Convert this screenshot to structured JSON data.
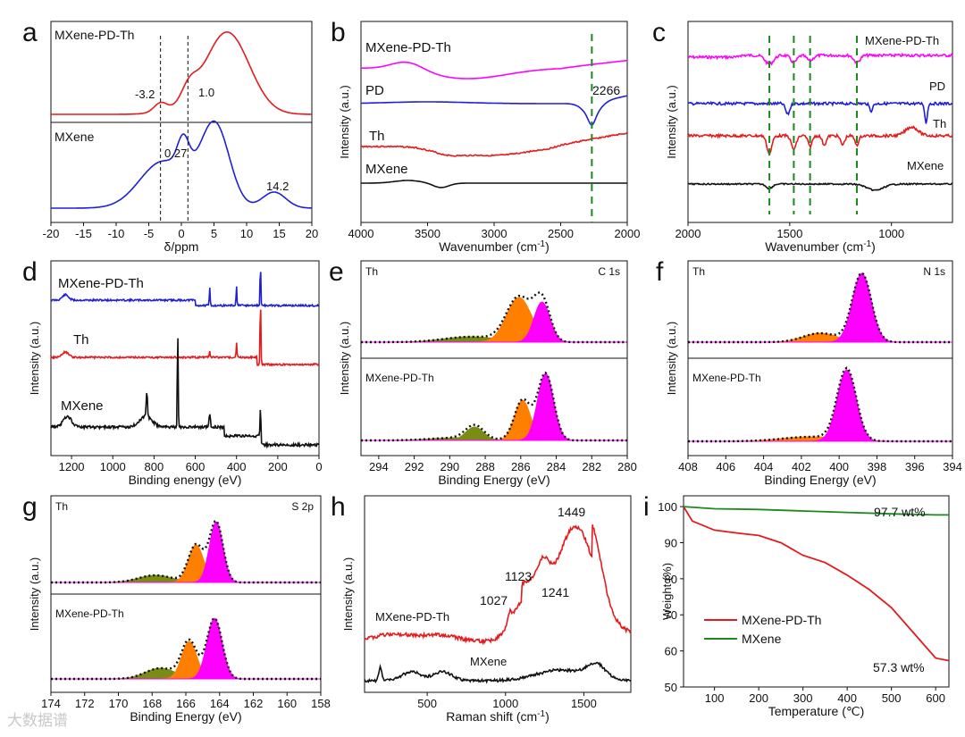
{
  "watermark": "大数据谱",
  "panels": {
    "a": {
      "letter": "a",
      "xlabel": "δ/ppm",
      "xlim": [
        -20,
        20
      ],
      "xticks": [
        "-20",
        "-15",
        "-10",
        "-5",
        "0",
        "5",
        "10",
        "15",
        "20"
      ],
      "labels": {
        "top": "MXene-PD-Th",
        "bottom": "MXene",
        "p1": "-3.2",
        "p2": "1.0",
        "p3": "0.27",
        "p4": "14.2"
      }
    },
    "b": {
      "letter": "b",
      "xlabel": "Wavenumber (cm",
      "ylabel": "Intensity (a.u.)",
      "xlim": [
        4000,
        2000
      ],
      "xticks": [
        "4000",
        "3500",
        "3000",
        "2500",
        "2000"
      ],
      "labels": {
        "s1": "MXene-PD-Th",
        "s2": "PD",
        "s3": "Th",
        "s4": "MXene",
        "peak": "2266"
      }
    },
    "c": {
      "letter": "c",
      "xlabel": "Wavenumber (cm",
      "ylabel": "Intensity (a.u.)",
      "xlim": [
        2000,
        700
      ],
      "xticks": [
        "2000",
        "1500",
        "1000"
      ],
      "labels": {
        "s1": "MXene-PD-Th",
        "s2": "PD",
        "s3": "Th",
        "s4": "MXene"
      }
    },
    "d": {
      "letter": "d",
      "xlabel": "Binding enengy (eV)",
      "ylabel": "Intensity (a.u.)",
      "xlim": [
        1300,
        0
      ],
      "xticks": [
        "1200",
        "1000",
        "800",
        "600",
        "400",
        "200",
        "0"
      ],
      "labels": {
        "s1": "MXene-PD-Th",
        "s2": "Th",
        "s3": "MXene"
      }
    },
    "e": {
      "letter": "e",
      "xlabel": "Binding Energy (eV)",
      "ylabel": "Intensity (a.u.)",
      "xlim": [
        295,
        280
      ],
      "xticks": [
        "294",
        "292",
        "290",
        "288",
        "286",
        "284",
        "282",
        "280"
      ],
      "labels": {
        "top": "Th",
        "bottom": "MXene-PD-Th",
        "corner": "C 1s"
      }
    },
    "f": {
      "letter": "f",
      "xlabel": "Binding Energy (eV)",
      "ylabel": "Intensity (a.u.)",
      "xlim": [
        408,
        394
      ],
      "xticks": [
        "408",
        "406",
        "404",
        "402",
        "400",
        "398",
        "396",
        "394"
      ],
      "labels": {
        "top": "Th",
        "bottom": "MXene-PD-Th",
        "corner": "N 1s"
      }
    },
    "g": {
      "letter": "g",
      "xlabel": "Binding Energy (eV)",
      "ylabel": "Intensity (a.u.)",
      "xlim": [
        174,
        158
      ],
      "xticks": [
        "174",
        "172",
        "170",
        "168",
        "166",
        "164",
        "162",
        "160",
        "158"
      ],
      "labels": {
        "top": "Th",
        "bottom": "MXene-PD-Th",
        "corner": "S 2p"
      }
    },
    "h": {
      "letter": "h",
      "xlabel": "Raman shift (cm",
      "ylabel": "Intensity (a.u.)",
      "xlim": [
        100,
        1800
      ],
      "xticks": [
        "500",
        "1000",
        "1500"
      ],
      "labels": {
        "s1": "MXene-PD-Th",
        "s2": "MXene",
        "p1": "1449",
        "p2": "1123",
        "p3": "1027",
        "p4": "1241"
      }
    },
    "i": {
      "letter": "i",
      "xlabel": "Temperature (℃)",
      "ylabel": "Weight (%)",
      "xlim": [
        30,
        630
      ],
      "ylim": [
        50,
        103
      ],
      "xticks": [
        "100",
        "200",
        "300",
        "400",
        "500",
        "600"
      ],
      "yticks": [
        "50",
        "60",
        "70",
        "80",
        "90",
        "100"
      ],
      "labels": {
        "leg1": "MXene-PD-Th",
        "leg2": "MXene",
        "v1": "97.7 wt%",
        "v2": "57.3 wt%"
      }
    }
  },
  "colors": {
    "red": "#e41a1c",
    "blue": "#1f1fd8",
    "black": "#111111",
    "magenta": "#ff00ff",
    "green": "#1a8a1a",
    "orange": "#ff8000",
    "olive": "#7a8c14"
  },
  "chart_data": [
    {
      "panel": "a",
      "type": "line",
      "title": "",
      "xlabel": "δ/ppm",
      "ylabel": "",
      "xlim": [
        -20,
        20
      ],
      "series": [
        {
          "name": "MXene-PD-Th",
          "x": [
            -20,
            -10,
            -5,
            -3.2,
            -2,
            0,
            1,
            2,
            4,
            7,
            10,
            13,
            16,
            20
          ],
          "y": [
            0.02,
            0.04,
            0.1,
            0.18,
            0.12,
            0.2,
            0.32,
            0.36,
            0.6,
            1.0,
            0.75,
            0.35,
            0.08,
            0.02
          ]
        },
        {
          "name": "MXene",
          "x": [
            -20,
            -12,
            -8,
            -6,
            -4,
            -2,
            0,
            0.27,
            1,
            3,
            5,
            7,
            9,
            11,
            14.2,
            17,
            20
          ],
          "y": [
            0.02,
            0.05,
            0.25,
            0.45,
            0.55,
            0.58,
            0.62,
            0.72,
            0.55,
            0.8,
            1.0,
            0.7,
            0.3,
            0.08,
            0.12,
            0.05,
            0.02
          ]
        }
      ],
      "annotations": [
        "-3.2",
        "1.0",
        "0.27",
        "14.2"
      ]
    },
    {
      "panel": "b",
      "type": "line",
      "xlabel": "Wavenumber (cm-1)",
      "ylabel": "Intensity (a.u.)",
      "xlim": [
        4000,
        2000
      ],
      "series": [
        {
          "name": "MXene-PD-Th"
        },
        {
          "name": "PD"
        },
        {
          "name": "Th"
        },
        {
          "name": "MXene"
        }
      ],
      "annotations": [
        "2266"
      ]
    },
    {
      "panel": "c",
      "type": "line",
      "xlabel": "Wavenumber (cm-1)",
      "ylabel": "Intensity (a.u.)",
      "xlim": [
        2000,
        700
      ],
      "series": [
        {
          "name": "MXene-PD-Th"
        },
        {
          "name": "PD"
        },
        {
          "name": "Th"
        },
        {
          "name": "MXene"
        }
      ]
    },
    {
      "panel": "d",
      "type": "line",
      "xlabel": "Binding enengy (eV)",
      "ylabel": "Intensity (a.u.)",
      "xlim": [
        1300,
        0
      ],
      "series": [
        {
          "name": "MXene-PD-Th"
        },
        {
          "name": "Th"
        },
        {
          "name": "MXene"
        }
      ]
    },
    {
      "panel": "e",
      "type": "line",
      "xlabel": "Binding Energy (eV)",
      "ylabel": "Intensity (a.u.)",
      "xlim": [
        295,
        280
      ],
      "series": [
        {
          "name": "Th",
          "peaks": [
            284.8,
            286.1,
            288.8
          ]
        },
        {
          "name": "MXene-PD-Th",
          "peaks": [
            284.6,
            285.9,
            288.6
          ]
        }
      ]
    },
    {
      "panel": "f",
      "type": "line",
      "xlabel": "Binding Energy (eV)",
      "ylabel": "Intensity (a.u.)",
      "xlim": [
        408,
        394
      ],
      "series": [
        {
          "name": "Th",
          "peaks": [
            398.8,
            401.0
          ]
        },
        {
          "name": "MXene-PD-Th",
          "peaks": [
            399.6,
            401.5
          ]
        }
      ]
    },
    {
      "panel": "g",
      "type": "line",
      "xlabel": "Binding Energy (eV)",
      "ylabel": "Intensity (a.u.)",
      "xlim": [
        174,
        158
      ],
      "series": [
        {
          "name": "Th",
          "peaks": [
            164.2,
            165.4,
            167.8
          ]
        },
        {
          "name": "MXene-PD-Th",
          "peaks": [
            164.3,
            165.8,
            167.5
          ]
        }
      ]
    },
    {
      "panel": "h",
      "type": "line",
      "xlabel": "Raman shift (cm-1)",
      "ylabel": "Intensity (a.u.)",
      "xlim": [
        100,
        1800
      ],
      "series": [
        {
          "name": "MXene-PD-Th"
        },
        {
          "name": "MXene"
        }
      ],
      "annotations": [
        "1449",
        "1123",
        "1027",
        "1241"
      ]
    },
    {
      "panel": "i",
      "type": "line",
      "xlabel": "Temperature (℃)",
      "ylabel": "Weight (%)",
      "xlim": [
        30,
        630
      ],
      "ylim": [
        50,
        103
      ],
      "series": [
        {
          "name": "MXene-PD-Th",
          "x": [
            30,
            50,
            100,
            150,
            200,
            250,
            300,
            350,
            400,
            450,
            500,
            550,
            600,
            630
          ],
          "y": [
            100,
            96,
            93.5,
            92.7,
            92,
            90,
            86.5,
            84.5,
            81,
            77,
            72,
            65,
            58,
            57.3
          ]
        },
        {
          "name": "MXene",
          "x": [
            30,
            100,
            200,
            300,
            400,
            500,
            600,
            630
          ],
          "y": [
            100,
            99.4,
            99.2,
            98.8,
            98.4,
            98,
            97.7,
            97.7
          ]
        }
      ],
      "annotations": [
        "97.7 wt%",
        "57.3 wt%"
      ],
      "legend": "bottom-left"
    }
  ]
}
